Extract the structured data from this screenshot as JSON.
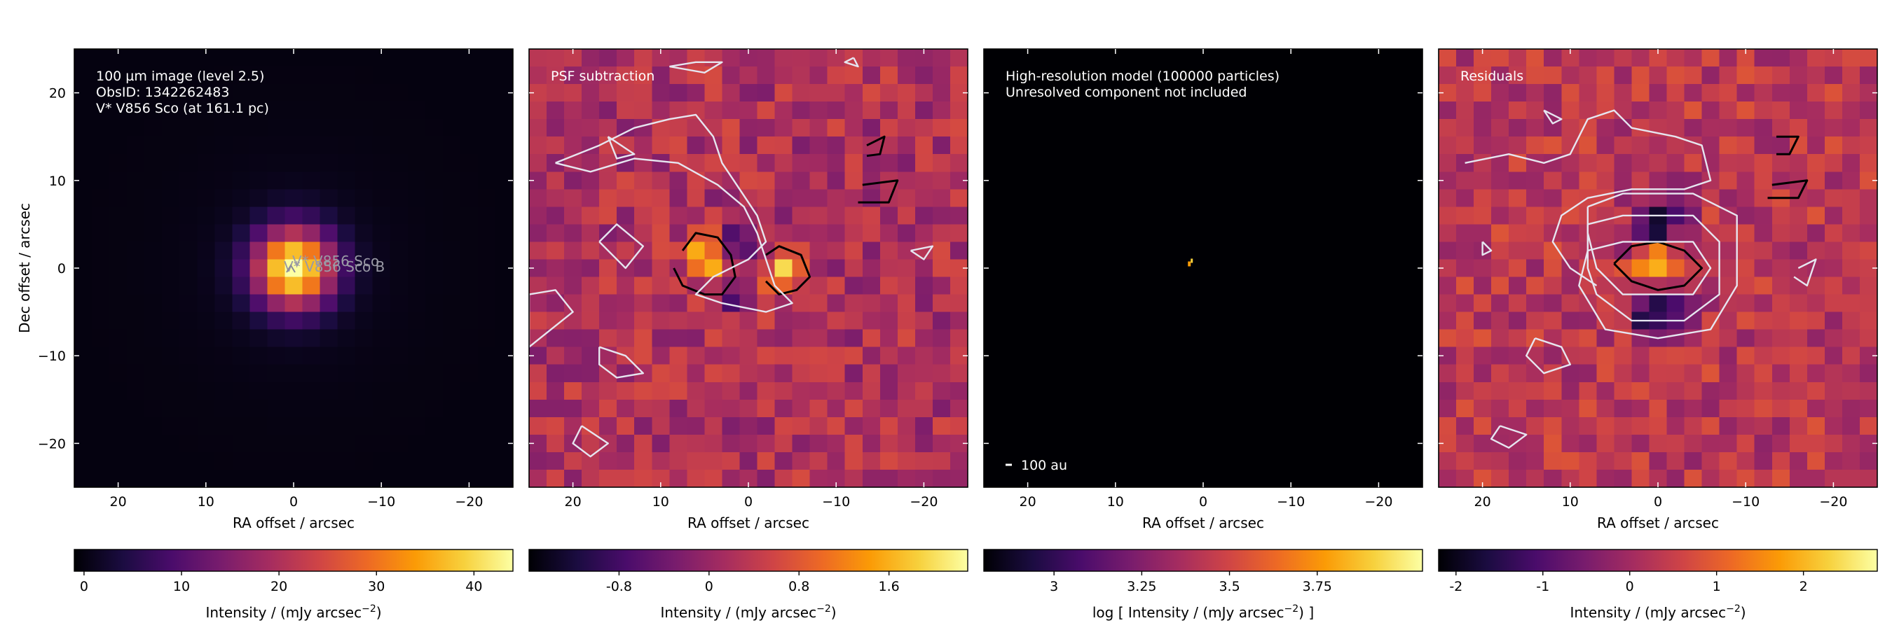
{
  "figure": {
    "colormap": [
      "#000004",
      "#1b0c41",
      "#4a0c6b",
      "#781c6d",
      "#a52c60",
      "#cf4446",
      "#ed6925",
      "#fb9b06",
      "#f7d13d",
      "#fcffa4"
    ],
    "contour_positive_color": "#000000",
    "contour_negative_color": "#e6e6f0"
  },
  "chart_data": [
    {
      "type": "heatmap",
      "panel": "image",
      "annotation_lines": [
        "100 µm image (level 2.5)",
        "ObsID: 1342262483",
        "V* V856 Sco (at 161.1 pc)"
      ],
      "source_labels": [
        "V* V856 Sco",
        "V* V856 Sco B"
      ],
      "xlabel": "RA offset / arcsec",
      "ylabel": "Dec offset / arcsec",
      "xlim": [
        25,
        -25
      ],
      "ylim": [
        -25,
        25
      ],
      "x_ticks": [
        20,
        10,
        0,
        -10,
        -20
      ],
      "x_tick_labels": [
        "20",
        "10",
        "0",
        "−10",
        "−20"
      ],
      "y_ticks": [
        20,
        10,
        0,
        -10,
        -20
      ],
      "y_tick_labels": [
        "20",
        "10",
        "0",
        "−10",
        "−20"
      ],
      "map": {
        "kind": "psf",
        "peak": 44,
        "center": [
          0,
          0
        ],
        "sigma": 3.1,
        "halo": 1.5
      },
      "colorbar": {
        "label": "Intensity / (mJy arcsec",
        "label_exponent": "−2",
        "label_suffix": ")",
        "min": -1,
        "max": 44,
        "ticks": [
          0,
          10,
          20,
          30,
          40
        ],
        "tick_labels": [
          "0",
          "10",
          "20",
          "30",
          "40"
        ]
      }
    },
    {
      "type": "heatmap",
      "panel": "psf_subtraction",
      "annotation_lines": [
        "PSF subtraction"
      ],
      "xlabel": "RA offset / arcsec",
      "xlim": [
        25,
        -25
      ],
      "ylim": [
        -25,
        25
      ],
      "x_ticks": [
        20,
        10,
        0,
        -10,
        -20
      ],
      "x_tick_labels": [
        "20",
        "10",
        "0",
        "−10",
        "−20"
      ],
      "map": {
        "kind": "noise",
        "base": 0.2,
        "amplitude": 0.45,
        "blobs": [
          {
            "x": 4.5,
            "y": 0.8,
            "amp": 1.8,
            "sigma": 1.6
          },
          {
            "x": -4.3,
            "y": -0.2,
            "amp": 1.6,
            "sigma": 1.5
          },
          {
            "x": 0.5,
            "y": 3.2,
            "amp": -1.2,
            "sigma": 1.6
          },
          {
            "x": 1.5,
            "y": -3,
            "amp": -0.8,
            "sigma": 1.4
          }
        ]
      },
      "contours": [
        {
          "sign": "positive",
          "points": [
            [
              7.5,
              2
            ],
            [
              6,
              4
            ],
            [
              3.5,
              3.5
            ],
            [
              2,
              1.5
            ],
            [
              1.5,
              -1
            ],
            [
              3,
              -3
            ],
            [
              5,
              -3
            ],
            [
              7.5,
              -2
            ],
            [
              8.5,
              0
            ]
          ]
        },
        {
          "sign": "positive",
          "points": [
            [
              -2,
              1.5
            ],
            [
              -3.5,
              2.5
            ],
            [
              -6,
              1.5
            ],
            [
              -7,
              -1
            ],
            [
              -5.5,
              -2.5
            ],
            [
              -3.5,
              -3
            ],
            [
              -2,
              -1.5
            ]
          ]
        },
        {
          "sign": "positive",
          "points": [
            [
              -13.5,
              14
            ],
            [
              -15.5,
              15
            ],
            [
              -15,
              13
            ],
            [
              -13.5,
              12.8
            ]
          ]
        },
        {
          "sign": "positive",
          "points": [
            [
              -13,
              9.5
            ],
            [
              -17,
              10
            ],
            [
              -16,
              7.5
            ],
            [
              -12.5,
              7.5
            ]
          ]
        },
        {
          "sign": "negative",
          "points": [
            [
              22,
              12
            ],
            [
              17,
              14
            ],
            [
              13,
              16
            ],
            [
              9,
              17
            ],
            [
              6,
              17.5
            ],
            [
              4,
              15
            ],
            [
              3,
              12
            ],
            [
              1,
              9
            ],
            [
              -1,
              6
            ],
            [
              -2,
              3
            ],
            [
              0,
              1
            ],
            [
              4,
              -1
            ],
            [
              6,
              -3
            ],
            [
              3,
              -4
            ],
            [
              -2,
              -5
            ],
            [
              -5,
              -4
            ],
            [
              -3,
              -2
            ],
            [
              -2,
              1
            ],
            [
              -1,
              4
            ],
            [
              0.5,
              7
            ],
            [
              3.5,
              9.5
            ],
            [
              8,
              12
            ],
            [
              13,
              12.5
            ],
            [
              18,
              11
            ],
            [
              22,
              12
            ]
          ]
        },
        {
          "sign": "negative",
          "points": [
            [
              17,
              3
            ],
            [
              15,
              5
            ],
            [
              12,
              2.5
            ],
            [
              14,
              0
            ],
            [
              17,
              3
            ]
          ]
        },
        {
          "sign": "negative",
          "points": [
            [
              16,
              15
            ],
            [
              13,
              13
            ],
            [
              15,
              12.5
            ],
            [
              16,
              15
            ]
          ]
        },
        {
          "sign": "negative",
          "points": [
            [
              -18.5,
              2
            ],
            [
              -21,
              2.5
            ],
            [
              -20,
              1
            ],
            [
              -18.5,
              2
            ]
          ]
        },
        {
          "sign": "negative",
          "points": [
            [
              17,
              -9
            ],
            [
              14,
              -10
            ],
            [
              12,
              -12
            ],
            [
              15,
              -12.5
            ],
            [
              17,
              -11
            ],
            [
              17,
              -9
            ]
          ]
        },
        {
          "sign": "negative",
          "points": [
            [
              19,
              -18
            ],
            [
              16,
              -20
            ],
            [
              18,
              -21.5
            ],
            [
              20,
              -20
            ],
            [
              19,
              -18
            ]
          ]
        },
        {
          "sign": "negative",
          "points": [
            [
              25,
              -3
            ],
            [
              22,
              -2.5
            ],
            [
              20,
              -5
            ],
            [
              25,
              -9
            ],
            [
              25,
              -3
            ]
          ]
        },
        {
          "sign": "negative",
          "points": [
            [
              9,
              23
            ],
            [
              6,
              23.5
            ],
            [
              3,
              23.5
            ],
            [
              5,
              22.3
            ],
            [
              9,
              23
            ]
          ]
        },
        {
          "sign": "negative",
          "points": [
            [
              -12,
              24
            ],
            [
              -12.5,
              23
            ],
            [
              -11,
              23.5
            ],
            [
              -12,
              24
            ]
          ]
        }
      ],
      "colorbar": {
        "label": "Intensity / (mJy arcsec",
        "label_exponent": "−2",
        "label_suffix": ")",
        "min": -1.6,
        "max": 2.3,
        "ticks": [
          -0.8,
          0,
          0.8,
          1.6
        ],
        "tick_labels": [
          "-0.8",
          "0",
          "0.8",
          "1.6"
        ]
      }
    },
    {
      "type": "heatmap",
      "panel": "model",
      "annotation_lines": [
        "High-resolution model (100000 particles)",
        "Unresolved component not included"
      ],
      "scale_bar_label": "100 au",
      "xlabel": "RA offset / arcsec",
      "xlim": [
        25,
        -25
      ],
      "ylim": [
        -25,
        25
      ],
      "x_ticks": [
        20,
        10,
        0,
        -10,
        -20
      ],
      "x_tick_labels": [
        "20",
        "10",
        "0",
        "−10",
        "−20"
      ],
      "map": {
        "kind": "point",
        "x": 1.5,
        "y": 0.2
      },
      "colorbar": {
        "label": "log [ Intensity / (mJy arcsec",
        "label_exponent": "−2",
        "label_suffix": ") ]",
        "min": 2.8,
        "max": 4.05,
        "ticks": [
          3,
          3.25,
          3.5,
          3.75
        ],
        "tick_labels": [
          "3",
          "3.25",
          "3.5",
          "3.75"
        ]
      }
    },
    {
      "type": "heatmap",
      "panel": "residuals",
      "annotation_lines": [
        "Residuals"
      ],
      "xlabel": "RA offset / arcsec",
      "xlim": [
        25,
        -25
      ],
      "ylim": [
        -25,
        25
      ],
      "x_ticks": [
        20,
        10,
        0,
        -10,
        -20
      ],
      "x_tick_labels": [
        "20",
        "10",
        "0",
        "−10",
        "−20"
      ],
      "map": {
        "kind": "residual",
        "base": 0.3,
        "amplitude": 0.55,
        "blobs": [
          {
            "x": 0,
            "y": 0.3,
            "amp": 2.6,
            "sigma": 1.9
          },
          {
            "x": 0,
            "y": 4.5,
            "amp": -2.2,
            "sigma": 2.2
          },
          {
            "x": 0,
            "y": -4.5,
            "amp": -2.4,
            "sigma": 2.2
          }
        ]
      },
      "contours": [
        {
          "sign": "positive",
          "points": [
            [
              5,
              0.5
            ],
            [
              3,
              2.5
            ],
            [
              0,
              3
            ],
            [
              -3,
              2
            ],
            [
              -5,
              0
            ],
            [
              -3,
              -2
            ],
            [
              0,
              -2.5
            ],
            [
              3,
              -1.5
            ],
            [
              5,
              0.5
            ]
          ]
        },
        {
          "sign": "positive",
          "points": [
            [
              -13.5,
              15
            ],
            [
              -16,
              15
            ],
            [
              -15,
              13
            ],
            [
              -13.5,
              13
            ]
          ]
        },
        {
          "sign": "positive",
          "points": [
            [
              -13,
              9.5
            ],
            [
              -17,
              10
            ],
            [
              -16,
              8
            ],
            [
              -12.5,
              8
            ]
          ]
        },
        {
          "sign": "negative",
          "points": [
            [
              8,
              7
            ],
            [
              4,
              8.5
            ],
            [
              -4,
              8.5
            ],
            [
              -9,
              6
            ],
            [
              -9,
              -2
            ],
            [
              -6,
              -7
            ],
            [
              0,
              -8
            ],
            [
              6,
              -7
            ],
            [
              9,
              -2
            ],
            [
              8,
              2
            ],
            [
              4,
              3
            ],
            [
              -4,
              3
            ],
            [
              -6,
              0
            ],
            [
              -4,
              -3
            ],
            [
              4,
              -3
            ],
            [
              7,
              0
            ],
            [
              8,
              4
            ],
            [
              8,
              7
            ]
          ]
        },
        {
          "sign": "negative",
          "points": [
            [
              8,
              5
            ],
            [
              4,
              6
            ],
            [
              -4,
              6
            ],
            [
              -7,
              3
            ],
            [
              -7,
              -3
            ],
            [
              -3,
              -6
            ],
            [
              3,
              -6
            ],
            [
              7,
              -3
            ],
            [
              8,
              0
            ],
            [
              8,
              5
            ]
          ]
        },
        {
          "sign": "negative",
          "points": [
            [
              22,
              12
            ],
            [
              17,
              13
            ],
            [
              13,
              12
            ],
            [
              10,
              13
            ],
            [
              8,
              17
            ],
            [
              5,
              18
            ],
            [
              3,
              16
            ],
            [
              -2,
              15
            ],
            [
              -5,
              14
            ],
            [
              -6,
              10
            ],
            [
              -3,
              9
            ],
            [
              3,
              9
            ],
            [
              8,
              8
            ],
            [
              11,
              6
            ],
            [
              12,
              3
            ],
            [
              10,
              0
            ],
            [
              7,
              -2
            ]
          ]
        },
        {
          "sign": "negative",
          "points": [
            [
              14,
              -8
            ],
            [
              11,
              -9
            ],
            [
              10,
              -11
            ],
            [
              13,
              -12
            ],
            [
              15,
              -10
            ],
            [
              14,
              -8
            ]
          ]
        },
        {
          "sign": "negative",
          "points": [
            [
              18,
              -18
            ],
            [
              15,
              -19
            ],
            [
              17,
              -20.5
            ],
            [
              19,
              -19.5
            ],
            [
              18,
              -18
            ]
          ]
        },
        {
          "sign": "negative",
          "points": [
            [
              -16,
              0
            ],
            [
              -18,
              1
            ],
            [
              -17,
              -2
            ],
            [
              -15.5,
              -1
            ]
          ]
        },
        {
          "sign": "negative",
          "points": [
            [
              20,
              3
            ],
            [
              19,
              2
            ],
            [
              20,
              1.5
            ],
            [
              20,
              3
            ]
          ]
        },
        {
          "sign": "negative",
          "points": [
            [
              13,
              18
            ],
            [
              11,
              17
            ],
            [
              12,
              16.5
            ],
            [
              13,
              18
            ]
          ]
        }
      ],
      "colorbar": {
        "label": "Intensity / (mJy arcsec",
        "label_exponent": "−2",
        "label_suffix": ")",
        "min": -2.2,
        "max": 2.85,
        "ticks": [
          -2,
          -1,
          0,
          1,
          2
        ],
        "tick_labels": [
          "-2",
          "-1",
          "0",
          "1",
          "2"
        ]
      }
    }
  ]
}
